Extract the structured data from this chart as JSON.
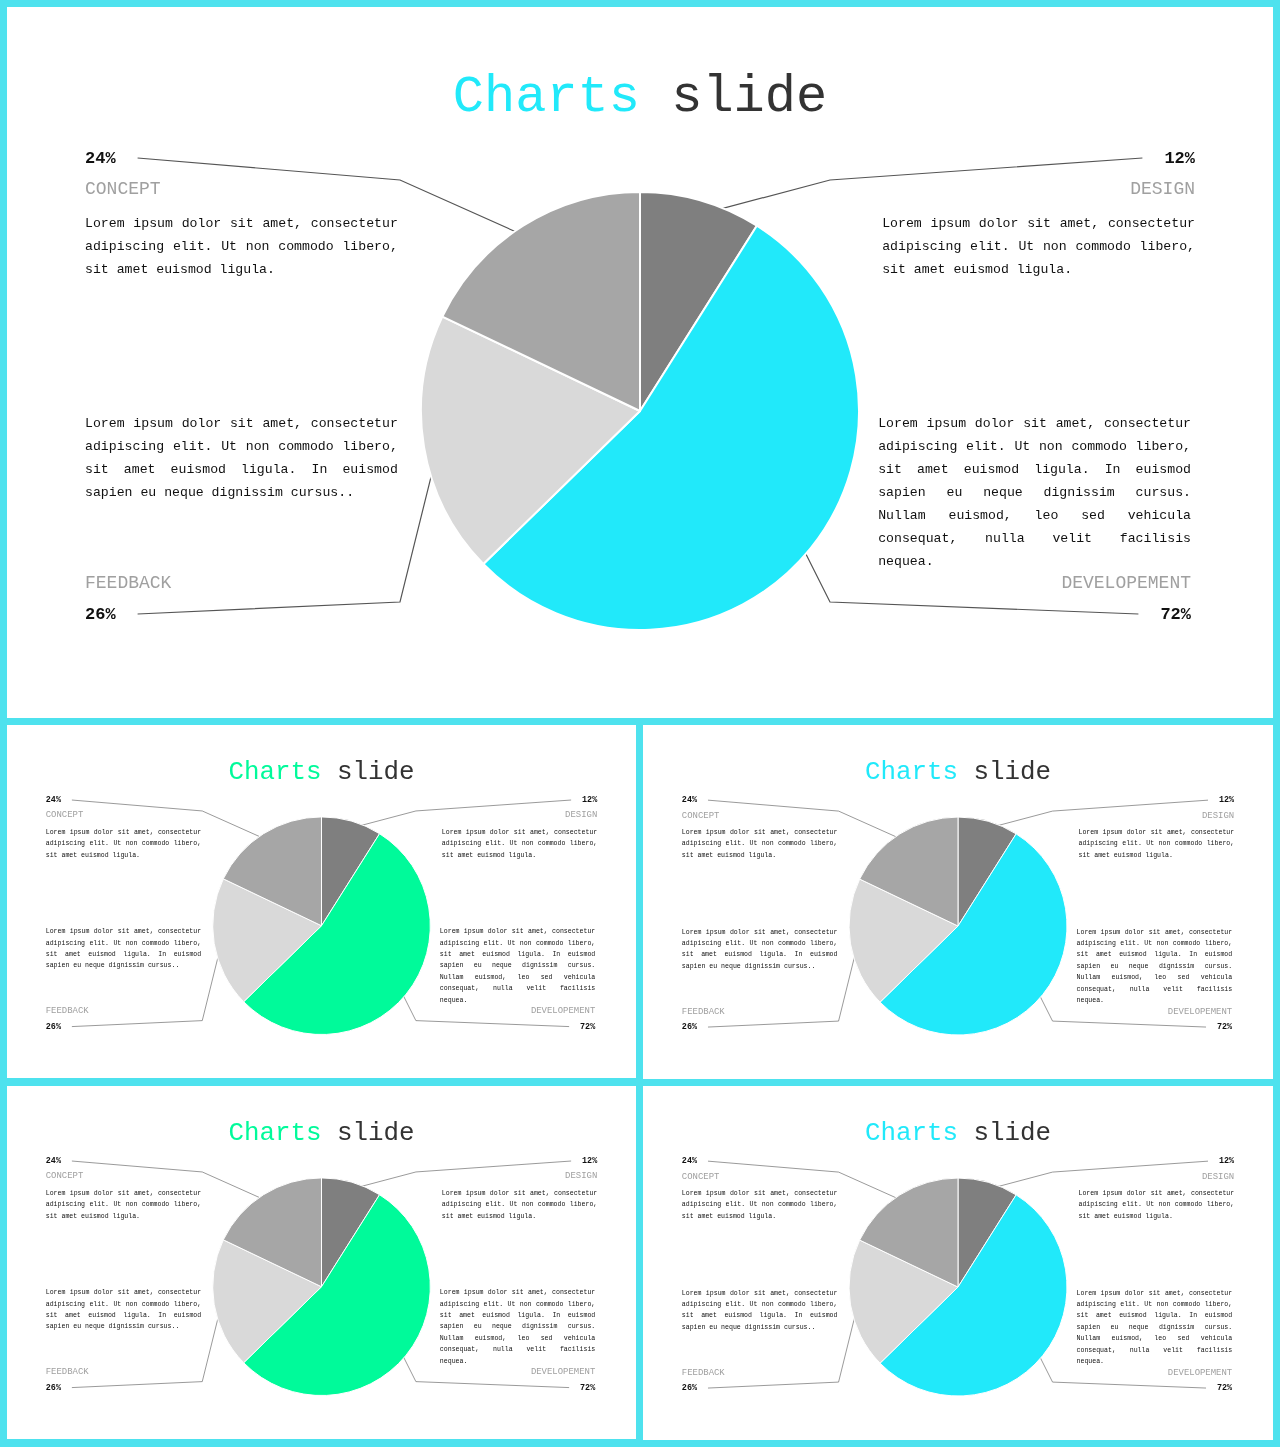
{
  "chart_data": [
    {
      "type": "pie",
      "title": "Charts slide",
      "categories": [
        "DESIGN",
        "DEVELOPEMENT",
        "FEEDBACK",
        "CONCEPT"
      ],
      "values": [
        12,
        72,
        26,
        24
      ],
      "colors": [
        "#7f7f7f",
        "#21e9fa",
        "#d9d9d9",
        "#a6a6a6"
      ],
      "value_labels": [
        "12%",
        "72%",
        "26%",
        "24%"
      ],
      "annotations": [
        "Lorem ipsum dolor sit amet, consectetur adipiscing elit. Ut non commodo libero, sit amet euismod ligula.",
        "Lorem ipsum dolor sit amet, consectetur adipiscing elit. Ut non commodo libero, sit amet euismod ligula. In euismod sapien eu neque dignissim cursus. Nullam euismod, leo sed vehicula consequat, nulla velit facilisis nequea.",
        "Lorem ipsum dolor sit amet, consectetur adipiscing elit. Ut non commodo libero, sit amet euismod ligula. In euismod sapien eu neque dignissim cursus..",
        "Lorem ipsum dolor sit amet, consectetur adipiscing elit. Ut non commodo libero, sit amet euismod ligula."
      ]
    },
    {
      "type": "pie",
      "title": "Charts slide",
      "categories": [
        "DESIGN",
        "DEVELOPEMENT",
        "FEEDBACK",
        "CONCEPT"
      ],
      "values": [
        12,
        72,
        26,
        24
      ],
      "colors": [
        "#7f7f7f",
        "#00fa9a",
        "#d9d9d9",
        "#a6a6a6"
      ],
      "value_labels": [
        "12%",
        "72%",
        "26%",
        "24%"
      ],
      "annotations": [
        "Lorem ipsum dolor sit amet, consectetur adipiscing elit. Ut non commodo libero, sit amet euismod ligula.",
        "Lorem ipsum dolor sit amet, consectetur adipiscing elit. Ut non commodo libero, sit amet euismod ligula. In euismod sapien eu neque dignissim cursus. Nullam euismod, leo sed vehicula consequat, nulla velit facilisis nequea.",
        "Lorem ipsum dolor sit amet, consectetur adipiscing elit. Ut non commodo libero, sit amet euismod ligula. In euismod sapien eu neque dignissim cursus..",
        "Lorem ipsum dolor sit amet, consectetur adipiscing elit. Ut non commodo libero, sit amet euismod ligula."
      ]
    },
    {
      "type": "pie",
      "title": "Charts slide",
      "categories": [
        "DESIGN",
        "DEVELOPEMENT",
        "FEEDBACK",
        "CONCEPT"
      ],
      "values": [
        12,
        72,
        26,
        24
      ],
      "colors": [
        "#7f7f7f",
        "#21e9fa",
        "#d9d9d9",
        "#a6a6a6"
      ],
      "value_labels": [
        "12%",
        "72%",
        "26%",
        "24%"
      ],
      "annotations": [
        "Lorem ipsum dolor sit amet, consectetur adipiscing elit. Ut non commodo libero, sit amet euismod ligula.",
        "Lorem ipsum dolor sit amet, consectetur adipiscing elit. Ut non commodo libero, sit amet euismod ligula. In euismod sapien eu neque dignissim cursus. Nullam euismod, leo sed vehicula consequat, nulla velit facilisis nequea.",
        "Lorem ipsum dolor sit amet, consectetur adipiscing elit. Ut non commodo libero, sit amet euismod ligula. In euismod sapien eu neque dignissim cursus..",
        "Lorem ipsum dolor sit amet, consectetur adipiscing elit. Ut non commodo libero, sit amet euismod ligula."
      ]
    },
    {
      "type": "pie",
      "title": "Charts slide",
      "categories": [
        "DESIGN",
        "DEVELOPEMENT",
        "FEEDBACK",
        "CONCEPT"
      ],
      "values": [
        12,
        72,
        26,
        24
      ],
      "colors": [
        "#7f7f7f",
        "#00fa9a",
        "#d9d9d9",
        "#a6a6a6"
      ],
      "value_labels": [
        "12%",
        "72%",
        "26%",
        "24%"
      ],
      "annotations": [
        "Lorem ipsum dolor sit amet, consectetur adipiscing elit. Ut non commodo libero, sit amet euismod ligula.",
        "Lorem ipsum dolor sit amet, consectetur adipiscing elit. Ut non commodo libero, sit amet euismod ligula. In euismod sapien eu neque dignissim cursus. Nullam euismod, leo sed vehicula consequat, nulla velit facilisis nequea.",
        "Lorem ipsum dolor sit amet, consectetur adipiscing elit. Ut non commodo libero, sit amet euismod ligula. In euismod sapien eu neque dignissim cursus..",
        "Lorem ipsum dolor sit amet, consectetur adipiscing elit. Ut non commodo libero, sit amet euismod ligula."
      ]
    },
    {
      "type": "pie",
      "title": "Charts slide",
      "categories": [
        "DESIGN",
        "DEVELOPEMENT",
        "FEEDBACK",
        "CONCEPT"
      ],
      "values": [
        12,
        72,
        26,
        24
      ],
      "colors": [
        "#7f7f7f",
        "#21e9fa",
        "#d9d9d9",
        "#a6a6a6"
      ],
      "value_labels": [
        "12%",
        "72%",
        "26%",
        "24%"
      ],
      "annotations": [
        "Lorem ipsum dolor sit amet, consectetur adipiscing elit. Ut non commodo libero, sit amet euismod ligula.",
        "Lorem ipsum dolor sit amet, consectetur adipiscing elit. Ut non commodo libero, sit amet euismod ligula. In euismod sapien eu neque dignissim cursus. Nullam euismod, leo sed vehicula consequat, nulla velit facilisis nequea.",
        "Lorem ipsum dolor sit amet, consectetur adipiscing elit. Ut non commodo libero, sit amet euismod ligula. In euismod sapien eu neque dignissim cursus..",
        "Lorem ipsum dolor sit amet, consectetur adipiscing elit. Ut non commodo libero, sit amet euismod ligula."
      ]
    }
  ]
}
